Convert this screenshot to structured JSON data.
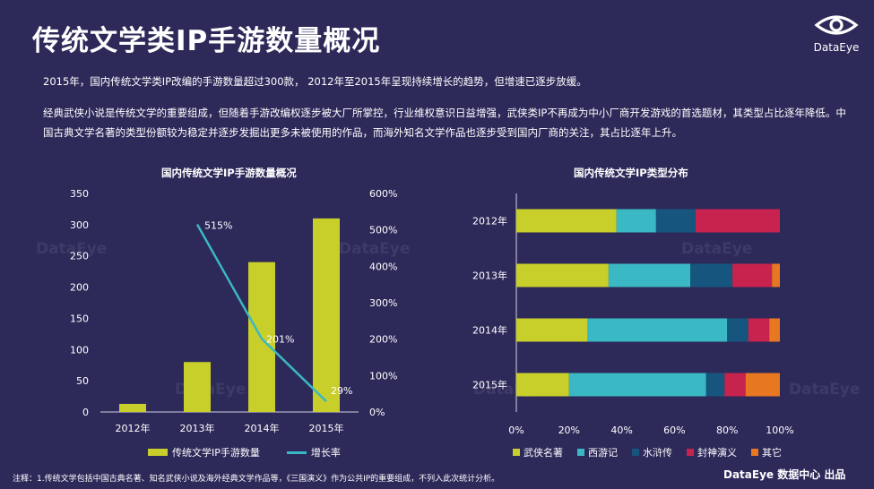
{
  "page": {
    "title": "传统文学类IP手游数量概况",
    "logo_text": "DataEye",
    "paragraph1": "2015年，国内传统文学类IP改编的手游数量超过300款， 2012年至2015年呈现持续增长的趋势，但增速已逐步放缓。",
    "paragraph2": "经典武侠小说是传统文学的重要组成，但随着手游改编权逐步被大厂所掌控，行业维权意识日益增强，武侠类IP不再成为中小厂商开发游戏的首选题材，其类型占比逐年降低。中国古典文学名著的类型份额较为稳定并逐步发掘出更多未被使用的作品，而海外知名文学作品也逐步受到国内厂商的关注，其占比逐年上升。",
    "footnote": "注释：1.传统文学包括中国古典名著、知名武侠小说及海外经典文学作品等，《三国演义》作为公共IP的重要组成，不列入此次统计分析。",
    "credit": "DataEye 数据中心 出品",
    "watermark": "DataEye",
    "colors": {
      "background": "#2d2a5a",
      "bar": "#c8cf2a",
      "line": "#3ab8c3",
      "wuxia": "#c8cf2a",
      "xiyouji": "#3ab8c3",
      "shuihu": "#16557e",
      "fengshen": "#c8224f",
      "other": "#e87722"
    }
  },
  "chart_data": [
    {
      "type": "bar",
      "title": "国内传统文学IP手游数量概况",
      "categories": [
        "2012年",
        "2013年",
        "2014年",
        "2015年"
      ],
      "series": [
        {
          "name": "传统文学IP手游数量",
          "type": "bar",
          "axis": "left",
          "values": [
            13,
            80,
            240,
            310
          ]
        },
        {
          "name": "增长率",
          "type": "line",
          "axis": "right",
          "values": [
            null,
            515,
            201,
            29
          ],
          "labels": [
            "",
            "515%",
            "201%",
            "29%"
          ]
        }
      ],
      "ylim_left": [
        0,
        350
      ],
      "yticks_left": [
        0,
        50,
        100,
        150,
        200,
        250,
        300,
        350
      ],
      "ylim_right": [
        0,
        600
      ],
      "yticks_right": [
        "0%",
        "100%",
        "200%",
        "300%",
        "400%",
        "500%",
        "600%"
      ],
      "legend": "bottom"
    },
    {
      "type": "bar",
      "stacked": true,
      "orientation": "horizontal",
      "title": "国内传统文学IP类型分布",
      "categories": [
        "2012年",
        "2013年",
        "2014年",
        "2015年"
      ],
      "series": [
        {
          "name": "武侠名著",
          "values": [
            38,
            35,
            27,
            20
          ]
        },
        {
          "name": "西游记",
          "values": [
            15,
            31,
            53,
            52
          ]
        },
        {
          "name": "水浒传",
          "values": [
            15,
            16,
            8,
            7
          ]
        },
        {
          "name": "封神演义",
          "values": [
            32,
            15,
            8,
            8
          ]
        },
        {
          "name": "其它",
          "values": [
            0,
            3,
            4,
            13
          ]
        }
      ],
      "xlim": [
        0,
        100
      ],
      "xticks": [
        "0%",
        "20%",
        "40%",
        "60%",
        "80%",
        "100%"
      ],
      "legend": "bottom"
    }
  ]
}
